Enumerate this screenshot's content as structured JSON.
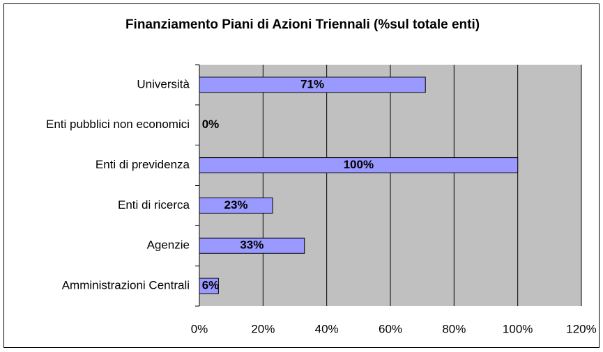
{
  "chart_data": {
    "type": "bar",
    "orientation": "horizontal",
    "title": "Finanziamento Piani di Azioni Triennali (%sul totale enti)",
    "categories": [
      "Università",
      "Enti pubblici non economici",
      "Enti di previdenza",
      "Enti di ricerca",
      "Agenzie",
      "Amministrazioni Centrali"
    ],
    "values": [
      71,
      0,
      100,
      23,
      33,
      6
    ],
    "value_labels": [
      "71%",
      "0%",
      "100%",
      "23%",
      "33%",
      "6%"
    ],
    "color": "#9999ff",
    "xlim": [
      0,
      120
    ],
    "xticks": [
      {
        "value": 0,
        "label": "0%"
      },
      {
        "value": 20,
        "label": "20%"
      },
      {
        "value": 40,
        "label": "40%"
      },
      {
        "value": 60,
        "label": "60%"
      },
      {
        "value": 80,
        "label": "80%"
      },
      {
        "value": 100,
        "label": "100%"
      },
      {
        "value": 120,
        "label": "120%"
      }
    ],
    "grid": true
  }
}
